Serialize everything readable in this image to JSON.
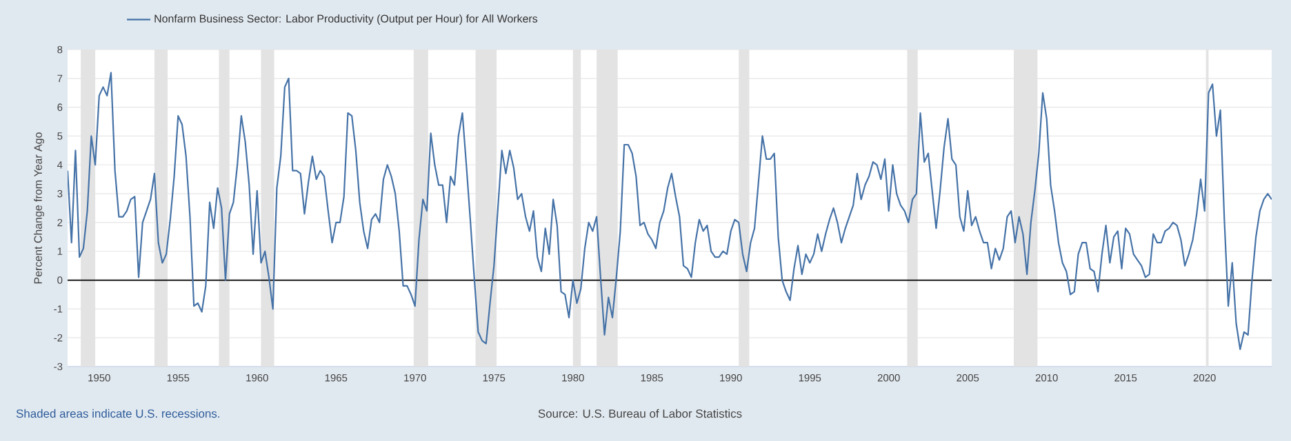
{
  "chart_data": {
    "type": "line",
    "ylabel": "Percent Change from Year Ago",
    "annotations": [
      "Shaded areas indicate U.S. recessions.",
      "Source: U.S. Bureau of Labor Statistics"
    ],
    "xlim": [
      "1948-01",
      "2024-04"
    ],
    "xticks": [
      "1950",
      "1955",
      "1960",
      "1965",
      "1970",
      "1975",
      "1980",
      "1985",
      "1990",
      "1995",
      "2000",
      "2005",
      "2010",
      "2015",
      "2020"
    ],
    "ylim": [
      -3,
      8
    ],
    "yticks": [
      -3,
      -2,
      -1,
      0,
      1,
      2,
      3,
      4,
      5,
      6,
      7,
      8
    ],
    "grid": "y",
    "legend": "top left",
    "line_style": "solid",
    "x": [
      "1948-01",
      "1948-04",
      "1948-07",
      "1948-10",
      "1949-01",
      "1949-04",
      "1949-07",
      "1949-10",
      "1950-01",
      "1950-04",
      "1950-07",
      "1950-10",
      "1951-01",
      "1951-04",
      "1951-07",
      "1951-10",
      "1952-01",
      "1952-04",
      "1952-07",
      "1952-10",
      "1953-01",
      "1953-04",
      "1953-07",
      "1953-10",
      "1954-01",
      "1954-04",
      "1954-07",
      "1954-10",
      "1955-01",
      "1955-04",
      "1955-07",
      "1955-10",
      "1956-01",
      "1956-04",
      "1956-07",
      "1956-10",
      "1957-01",
      "1957-04",
      "1957-07",
      "1957-10",
      "1958-01",
      "1958-04",
      "1958-07",
      "1958-10",
      "1959-01",
      "1959-04",
      "1959-07",
      "1959-10",
      "1960-01",
      "1960-04",
      "1960-07",
      "1960-10",
      "1961-01",
      "1961-04",
      "1961-07",
      "1961-10",
      "1962-01",
      "1962-04",
      "1962-07",
      "1962-10",
      "1963-01",
      "1963-04",
      "1963-07",
      "1963-10",
      "1964-01",
      "1964-04",
      "1964-07",
      "1964-10",
      "1965-01",
      "1965-04",
      "1965-07",
      "1965-10",
      "1966-01",
      "1966-04",
      "1966-07",
      "1966-10",
      "1967-01",
      "1967-04",
      "1967-07",
      "1967-10",
      "1968-01",
      "1968-04",
      "1968-07",
      "1968-10",
      "1969-01",
      "1969-04",
      "1969-07",
      "1969-10",
      "1970-01",
      "1970-04",
      "1970-07",
      "1970-10",
      "1971-01",
      "1971-04",
      "1971-07",
      "1971-10",
      "1972-01",
      "1972-04",
      "1972-07",
      "1972-10",
      "1973-01",
      "1973-04",
      "1973-07",
      "1973-10",
      "1974-01",
      "1974-04",
      "1974-07",
      "1974-10",
      "1975-01",
      "1975-04",
      "1975-07",
      "1975-10",
      "1976-01",
      "1976-04",
      "1976-07",
      "1976-10",
      "1977-01",
      "1977-04",
      "1977-07",
      "1977-10",
      "1978-01",
      "1978-04",
      "1978-07",
      "1978-10",
      "1979-01",
      "1979-04",
      "1979-07",
      "1979-10",
      "1980-01",
      "1980-04",
      "1980-07",
      "1980-10",
      "1981-01",
      "1981-04",
      "1981-07",
      "1981-10",
      "1982-01",
      "1982-04",
      "1982-07",
      "1982-10",
      "1983-01",
      "1983-04",
      "1983-07",
      "1983-10",
      "1984-01",
      "1984-04",
      "1984-07",
      "1984-10",
      "1985-01",
      "1985-04",
      "1985-07",
      "1985-10",
      "1986-01",
      "1986-04",
      "1986-07",
      "1986-10",
      "1987-01",
      "1987-04",
      "1987-07",
      "1987-10",
      "1988-01",
      "1988-04",
      "1988-07",
      "1988-10",
      "1989-01",
      "1989-04",
      "1989-07",
      "1989-10",
      "1990-01",
      "1990-04",
      "1990-07",
      "1990-10",
      "1991-01",
      "1991-04",
      "1991-07",
      "1991-10",
      "1992-01",
      "1992-04",
      "1992-07",
      "1992-10",
      "1993-01",
      "1993-04",
      "1993-07",
      "1993-10",
      "1994-01",
      "1994-04",
      "1994-07",
      "1994-10",
      "1995-01",
      "1995-04",
      "1995-07",
      "1995-10",
      "1996-01",
      "1996-04",
      "1996-07",
      "1996-10",
      "1997-01",
      "1997-04",
      "1997-07",
      "1997-10",
      "1998-01",
      "1998-04",
      "1998-07",
      "1998-10",
      "1999-01",
      "1999-04",
      "1999-07",
      "1999-10",
      "2000-01",
      "2000-04",
      "2000-07",
      "2000-10",
      "2001-01",
      "2001-04",
      "2001-07",
      "2001-10",
      "2002-01",
      "2002-04",
      "2002-07",
      "2002-10",
      "2003-01",
      "2003-04",
      "2003-07",
      "2003-10",
      "2004-01",
      "2004-04",
      "2004-07",
      "2004-10",
      "2005-01",
      "2005-04",
      "2005-07",
      "2005-10",
      "2006-01",
      "2006-04",
      "2006-07",
      "2006-10",
      "2007-01",
      "2007-04",
      "2007-07",
      "2007-10",
      "2008-01",
      "2008-04",
      "2008-07",
      "2008-10",
      "2009-01",
      "2009-04",
      "2009-07",
      "2009-10",
      "2010-01",
      "2010-04",
      "2010-07",
      "2010-10",
      "2011-01",
      "2011-04",
      "2011-07",
      "2011-10",
      "2012-01",
      "2012-04",
      "2012-07",
      "2012-10",
      "2013-01",
      "2013-04",
      "2013-07",
      "2013-10",
      "2014-01",
      "2014-04",
      "2014-07",
      "2014-10",
      "2015-01",
      "2015-04",
      "2015-07",
      "2015-10",
      "2016-01",
      "2016-04",
      "2016-07",
      "2016-10",
      "2017-01",
      "2017-04",
      "2017-07",
      "2017-10",
      "2018-01",
      "2018-04",
      "2018-07",
      "2018-10",
      "2019-01",
      "2019-04",
      "2019-07",
      "2019-10",
      "2020-01",
      "2020-04",
      "2020-07",
      "2020-10",
      "2021-01",
      "2021-04",
      "2021-07",
      "2021-10",
      "2022-01",
      "2022-04",
      "2022-07",
      "2022-10",
      "2023-01",
      "2023-04",
      "2023-07",
      "2023-10",
      "2024-01",
      "2024-04"
    ],
    "series": [
      {
        "name": "Nonfarm Business Sector: Labor Productivity (Output per Hour) for All Workers",
        "color": "#4572a7",
        "values": [
          3.8,
          1.3,
          4.5,
          0.8,
          1.1,
          2.4,
          5.0,
          4.0,
          6.4,
          6.7,
          6.4,
          7.2,
          3.8,
          2.2,
          2.2,
          2.4,
          2.8,
          2.9,
          0.1,
          2.0,
          2.4,
          2.8,
          3.7,
          1.3,
          0.6,
          0.9,
          2.1,
          3.6,
          5.7,
          5.4,
          4.3,
          2.2,
          -0.9,
          -0.8,
          -1.1,
          -0.2,
          2.7,
          1.8,
          3.2,
          2.5,
          0.0,
          2.3,
          2.7,
          4.0,
          5.7,
          4.8,
          3.3,
          0.9,
          3.1,
          0.6,
          1.0,
          0.1,
          -1.0,
          3.2,
          4.3,
          6.7,
          7.0,
          3.8,
          3.8,
          3.7,
          2.3,
          3.4,
          4.3,
          3.5,
          3.8,
          3.6,
          2.4,
          1.3,
          2.0,
          2.0,
          2.9,
          5.8,
          5.7,
          4.5,
          2.7,
          1.7,
          1.1,
          2.1,
          2.3,
          2.0,
          3.5,
          4.0,
          3.6,
          3.0,
          1.7,
          -0.2,
          -0.2,
          -0.5,
          -0.9,
          1.4,
          2.8,
          2.4,
          5.1,
          4.0,
          3.3,
          3.3,
          2.0,
          3.6,
          3.3,
          5.0,
          5.8,
          4.0,
          2.1,
          0.1,
          -1.8,
          -2.1,
          -2.2,
          -0.8,
          0.5,
          2.5,
          4.5,
          3.7,
          4.5,
          3.9,
          2.8,
          3.0,
          2.2,
          1.7,
          2.4,
          0.8,
          0.3,
          1.8,
          0.9,
          2.8,
          1.9,
          -0.4,
          -0.5,
          -1.3,
          0.0,
          -0.8,
          -0.3,
          1.1,
          2.0,
          1.7,
          2.2,
          0.1,
          -1.9,
          -0.6,
          -1.3,
          0.1,
          1.7,
          4.7,
          4.7,
          4.4,
          3.6,
          1.9,
          2.0,
          1.6,
          1.4,
          1.1,
          2.0,
          2.4,
          3.2,
          3.7,
          2.9,
          2.2,
          0.5,
          0.4,
          0.1,
          1.3,
          2.1,
          1.7,
          1.9,
          1.0,
          0.8,
          0.8,
          1.0,
          0.9,
          1.7,
          2.1,
          2.0,
          0.9,
          0.3,
          1.3,
          1.8,
          3.4,
          5.0,
          4.2,
          4.2,
          4.4,
          1.5,
          0.0,
          -0.4,
          -0.7,
          0.4,
          1.2,
          0.2,
          0.9,
          0.6,
          0.9,
          1.6,
          1.0,
          1.6,
          2.1,
          2.5,
          2.0,
          1.3,
          1.8,
          2.2,
          2.6,
          3.7,
          2.8,
          3.3,
          3.6,
          4.1,
          4.0,
          3.5,
          4.2,
          2.4,
          4.0,
          3.0,
          2.6,
          2.4,
          2.0,
          2.8,
          3.0,
          5.8,
          4.1,
          4.4,
          3.1,
          1.8,
          3.1,
          4.6,
          5.6,
          4.2,
          4.0,
          2.2,
          1.7,
          3.1,
          1.9,
          2.2,
          1.7,
          1.3,
          1.3,
          0.4,
          1.1,
          0.7,
          1.1,
          2.2,
          2.4,
          1.3,
          2.2,
          1.6,
          0.2,
          2.0,
          3.1,
          4.4,
          6.5,
          5.6,
          3.3,
          2.4,
          1.3,
          0.6,
          0.3,
          -0.5,
          -0.4,
          0.9,
          1.3,
          1.3,
          0.4,
          0.3,
          -0.4,
          0.9,
          1.9,
          0.6,
          1.5,
          1.7,
          0.4,
          1.8,
          1.6,
          0.9,
          0.7,
          0.5,
          0.1,
          0.2,
          1.6,
          1.3,
          1.3,
          1.7,
          1.8,
          2.0,
          1.9,
          1.4,
          0.5,
          0.9,
          1.4,
          2.3,
          3.5,
          2.4,
          6.5,
          6.8,
          5.0,
          5.9,
          2.1,
          -0.9,
          0.6,
          -1.5,
          -2.4,
          -1.8,
          -1.9,
          0.0,
          1.5,
          2.4,
          2.8,
          3.0,
          2.8
        ]
      }
    ],
    "ref_lines": [
      {
        "axis": "y",
        "value": 0,
        "color": "#000000"
      }
    ],
    "bands": [
      {
        "axis": "x",
        "from": "1948-11",
        "to": "1949-10",
        "color": "#e3e3e3"
      },
      {
        "axis": "x",
        "from": "1953-07",
        "to": "1954-05",
        "color": "#e3e3e3"
      },
      {
        "axis": "x",
        "from": "1957-08",
        "to": "1958-04",
        "color": "#e3e3e3"
      },
      {
        "axis": "x",
        "from": "1960-04",
        "to": "1961-02",
        "color": "#e3e3e3"
      },
      {
        "axis": "x",
        "from": "1969-12",
        "to": "1970-11",
        "color": "#e3e3e3"
      },
      {
        "axis": "x",
        "from": "1973-11",
        "to": "1975-03",
        "color": "#e3e3e3"
      },
      {
        "axis": "x",
        "from": "1980-01",
        "to": "1980-07",
        "color": "#e3e3e3"
      },
      {
        "axis": "x",
        "from": "1981-07",
        "to": "1982-11",
        "color": "#e3e3e3"
      },
      {
        "axis": "x",
        "from": "1990-07",
        "to": "1991-03",
        "color": "#e3e3e3"
      },
      {
        "axis": "x",
        "from": "2001-03",
        "to": "2001-11",
        "color": "#e3e3e3"
      },
      {
        "axis": "x",
        "from": "2007-12",
        "to": "2009-06",
        "color": "#e3e3e3"
      },
      {
        "axis": "x",
        "from": "2020-02",
        "to": "2020-04",
        "color": "#e3e3e3"
      }
    ]
  }
}
